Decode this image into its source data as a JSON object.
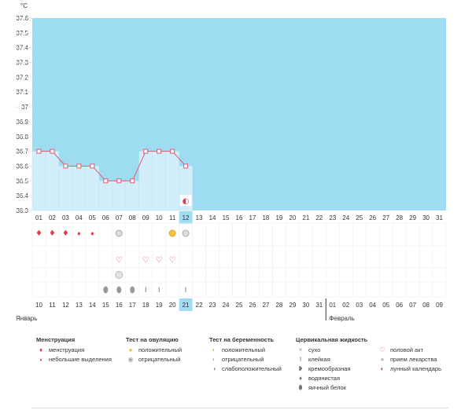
{
  "chart_data": {
    "type": "line",
    "unit_label": "°C",
    "y_ticks": [
      "37.6",
      "37.5",
      "37.4",
      "37.3",
      "37.2",
      "37.1",
      "37",
      "36.9",
      "36.8",
      "36.7",
      "36.6",
      "36.5",
      "36.4",
      "36.3"
    ],
    "ylim": [
      36.3,
      37.6
    ],
    "cycle_days": [
      "01",
      "02",
      "03",
      "04",
      "05",
      "06",
      "07",
      "08",
      "09",
      "10",
      "11",
      "12",
      "13",
      "14",
      "15",
      "16",
      "17",
      "18",
      "19",
      "20",
      "21",
      "22",
      "23",
      "24",
      "25",
      "26",
      "27",
      "28",
      "29",
      "30",
      "31"
    ],
    "temperatures": [
      36.7,
      36.7,
      36.6,
      36.6,
      36.6,
      36.5,
      36.5,
      36.5,
      36.7,
      36.7,
      36.7,
      36.6
    ],
    "current_day_index": 11,
    "calendar_dates": [
      "10",
      "11",
      "12",
      "13",
      "14",
      "15",
      "16",
      "17",
      "18",
      "19",
      "20",
      "21",
      "22",
      "23",
      "24",
      "25",
      "26",
      "27",
      "28",
      "29",
      "30",
      "31",
      "01",
      "02",
      "03",
      "04",
      "05",
      "06",
      "07",
      "08",
      "09"
    ],
    "red_date_indices": [
      2,
      3,
      9,
      10,
      16,
      17,
      24,
      25,
      30
    ],
    "feb_divider_index": 22,
    "month_labels": {
      "january": "Январь",
      "february": "Февраль"
    },
    "moon_marker_index": 11,
    "markers": {
      "menstruation": [
        {
          "day": 0,
          "kind": "heavy"
        },
        {
          "day": 1,
          "kind": "heavy"
        },
        {
          "day": 2,
          "kind": "heavy"
        },
        {
          "day": 3,
          "kind": "light"
        },
        {
          "day": 4,
          "kind": "light"
        }
      ],
      "ovulation_test": [
        {
          "day": 6,
          "kind": "negative"
        },
        {
          "day": 10,
          "kind": "positive"
        },
        {
          "day": 11,
          "kind": "negative"
        }
      ],
      "intercourse": [
        6,
        8,
        9,
        10
      ],
      "pregnancy_test": [
        6
      ],
      "cervical_fluid": [
        {
          "day": 5,
          "kind": "eggwhite"
        },
        {
          "day": 6,
          "kind": "eggwhite"
        },
        {
          "day": 7,
          "kind": "eggwhite"
        },
        {
          "day": 8,
          "kind": "sticky"
        },
        {
          "day": 9,
          "kind": "sticky"
        },
        {
          "day": 11,
          "kind": "sticky"
        }
      ]
    },
    "colors": {
      "above_bg": "#9ddcf1",
      "below_bg": "#d2eefa",
      "line": "#e05a72",
      "current_day": "#a0dbf2",
      "red_text": "#e8384f",
      "grid": "#e6e6e6"
    }
  },
  "legend": {
    "menstruation": {
      "title": "Менструация",
      "items": [
        "менструация",
        "небольшие выделения"
      ]
    },
    "ovulation": {
      "title": "Тест на овуляцию",
      "items": [
        "положительный",
        "отрицательный"
      ]
    },
    "pregnancy": {
      "title": "Тест на беременность",
      "items": [
        "положительный",
        "отрицательный",
        "слабоположительный"
      ]
    },
    "cervical": {
      "title": "Цервикальная жидкость",
      "items": [
        "сухо",
        "клейкая",
        "кремообразная",
        "водянистая",
        "яичный белок"
      ]
    },
    "other": {
      "items": [
        "половой акт",
        "прием лекарства",
        "лунный календарь"
      ]
    }
  }
}
